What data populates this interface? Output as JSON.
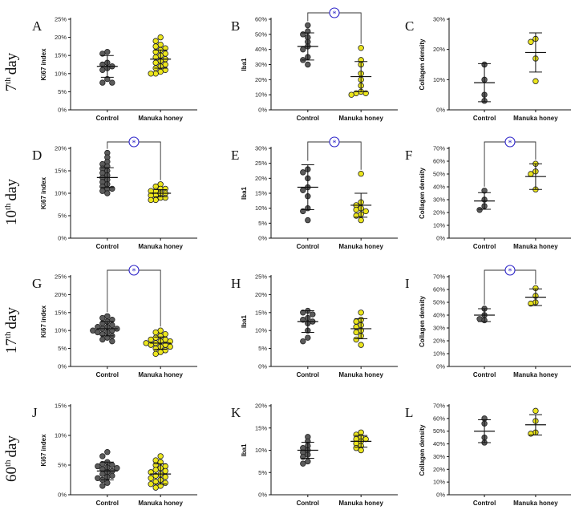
{
  "colors": {
    "control": "#5b5b5b",
    "honey": "#ece61c",
    "significance": "#2b22c8",
    "axis": "#111111"
  },
  "row_labels": [
    {
      "num": "7",
      "sup": "th",
      "word": "day"
    },
    {
      "num": "10",
      "sup": "th",
      "word": "day"
    },
    {
      "num": "17",
      "sup": "th",
      "word": "day"
    },
    {
      "num": "60",
      "sup": "th",
      "word": "day"
    }
  ],
  "significance_marker": "*",
  "chart_data": [
    {
      "type": "scatter",
      "panel": "A",
      "ylabel": "Ki67 index",
      "ylim": [
        0,
        25
      ],
      "yticks": [
        "0%",
        "5%",
        "10%",
        "15%",
        "20%",
        "25%"
      ],
      "categories": [
        "Control",
        "Manuka honey"
      ],
      "significant": false,
      "series": [
        {
          "name": "Control",
          "mean": 12.0,
          "sd": 3.0,
          "values": [
            16.0,
            15.5,
            13.0,
            12.5,
            12.0,
            11.5,
            11.0,
            8.5,
            7.5,
            7.5
          ]
        },
        {
          "name": "Manuka honey",
          "mean": 14.0,
          "sd": 2.5,
          "values": [
            20.0,
            19.0,
            18.0,
            17.5,
            17.0,
            16.5,
            16.0,
            15.5,
            15.0,
            14.5,
            14.0,
            13.5,
            13.0,
            12.5,
            12.0,
            11.5,
            11.0,
            10.5,
            10.0,
            10.0
          ]
        }
      ]
    },
    {
      "type": "scatter",
      "panel": "B",
      "ylabel": "Iba1",
      "ylim": [
        0,
        60
      ],
      "yticks": [
        "0%",
        "10%",
        "20%",
        "30%",
        "40%",
        "50%",
        "60%"
      ],
      "categories": [
        "Control",
        "Manuka honey"
      ],
      "significant": true,
      "series": [
        {
          "name": "Control",
          "mean": 42,
          "sd": 9,
          "values": [
            56,
            52,
            50,
            48,
            45,
            42,
            40,
            35,
            33,
            30
          ]
        },
        {
          "name": "Manuka honey",
          "mean": 22,
          "sd": 10,
          "values": [
            41,
            33,
            30,
            24,
            20,
            16,
            12,
            11,
            11,
            10
          ]
        }
      ]
    },
    {
      "type": "scatter",
      "panel": "C",
      "ylabel": "Collagen density",
      "ylim": [
        0,
        30
      ],
      "yticks": [
        "0%",
        "10%",
        "20%",
        "30%"
      ],
      "categories": [
        "Control",
        "Manuka honey"
      ],
      "significant": false,
      "series": [
        {
          "name": "Control",
          "mean": 9.0,
          "sd": 6.3,
          "values": [
            15.0,
            10.0,
            5.0,
            3.0
          ]
        },
        {
          "name": "Manuka honey",
          "mean": 19.0,
          "sd": 6.5,
          "values": [
            23.5,
            22.5,
            17.0,
            9.5
          ]
        }
      ]
    },
    {
      "type": "scatter",
      "panel": "D",
      "ylabel": "Ki67 index",
      "ylim": [
        0,
        20
      ],
      "yticks": [
        "0%",
        "5%",
        "10%",
        "15%",
        "20%"
      ],
      "categories": [
        "Control",
        "Manuka honey"
      ],
      "significant": true,
      "series": [
        {
          "name": "Control",
          "mean": 13.5,
          "sd": 2.2,
          "values": [
            19.0,
            18.0,
            17.0,
            16.5,
            16.0,
            15.5,
            15.0,
            14.5,
            14.0,
            13.5,
            13.0,
            12.5,
            12.0,
            11.5,
            11.0,
            11.0,
            10.5,
            10.0
          ]
        },
        {
          "name": "Manuka honey",
          "mean": 10.0,
          "sd": 0.8,
          "values": [
            12.0,
            11.5,
            11.0,
            11.0,
            10.5,
            10.5,
            10.0,
            10.0,
            9.5,
            9.5,
            9.0,
            9.0,
            8.5,
            8.5
          ]
        }
      ]
    },
    {
      "type": "scatter",
      "panel": "E",
      "ylabel": "Iba1",
      "ylim": [
        0,
        30
      ],
      "yticks": [
        "0%",
        "5%",
        "10%",
        "15%",
        "20%",
        "25%",
        "30%"
      ],
      "categories": [
        "Control",
        "Manuka honey"
      ],
      "significant": true,
      "series": [
        {
          "name": "Control",
          "mean": 17,
          "sd": 7.5,
          "values": [
            23,
            22,
            20,
            17,
            16,
            14,
            10,
            9,
            6
          ]
        },
        {
          "name": "Manuka honey",
          "mean": 11,
          "sd": 4,
          "values": [
            21.5,
            12,
            11,
            10,
            9.5,
            9,
            8,
            7.5,
            6
          ]
        }
      ]
    },
    {
      "type": "scatter",
      "panel": "F",
      "ylabel": "Collagen density",
      "ylim": [
        0,
        70
      ],
      "yticks": [
        "0%",
        "10%",
        "20%",
        "30%",
        "40%",
        "50%",
        "60%",
        "70%"
      ],
      "categories": [
        "Control",
        "Manuka honey"
      ],
      "significant": true,
      "series": [
        {
          "name": "Control",
          "mean": 29,
          "sd": 6.5,
          "values": [
            37,
            30,
            25,
            22
          ]
        },
        {
          "name": "Manuka honey",
          "mean": 48,
          "sd": 10,
          "values": [
            58,
            52,
            50,
            38
          ]
        }
      ]
    },
    {
      "type": "scatter",
      "panel": "G",
      "ylabel": "Ki67 index",
      "ylim": [
        0,
        25
      ],
      "yticks": [
        "0%",
        "5%",
        "10%",
        "15%",
        "20%",
        "25%"
      ],
      "categories": [
        "Control",
        "Manuka honey"
      ],
      "significant": true,
      "series": [
        {
          "name": "Control",
          "mean": 10.5,
          "sd": 2.0,
          "values": [
            14.0,
            13.5,
            13.0,
            12.5,
            12.0,
            11.5,
            11.0,
            11.0,
            10.5,
            10.5,
            10.0,
            10.0,
            9.5,
            9.5,
            9.0,
            8.5,
            8.0,
            7.5,
            7.0
          ]
        },
        {
          "name": "Manuka honey",
          "mean": 6.5,
          "sd": 1.7,
          "values": [
            10.0,
            9.5,
            9.0,
            8.5,
            8.0,
            7.5,
            7.5,
            7.0,
            7.0,
            6.5,
            6.5,
            6.0,
            6.0,
            5.5,
            5.5,
            5.0,
            4.5,
            4.0,
            3.5
          ]
        }
      ]
    },
    {
      "type": "scatter",
      "panel": "H",
      "ylabel": "Iba1",
      "ylim": [
        0,
        25
      ],
      "yticks": [
        "0%",
        "5%",
        "10%",
        "15%",
        "20%",
        "25%"
      ],
      "categories": [
        "Control",
        "Manuka honey"
      ],
      "significant": false,
      "series": [
        {
          "name": "Control",
          "mean": 12.5,
          "sd": 3.0,
          "values": [
            15.5,
            15.0,
            14.5,
            13.5,
            13.0,
            12.5,
            12.0,
            10.0,
            8.0,
            7.0
          ]
        },
        {
          "name": "Manuka honey",
          "mean": 10.5,
          "sd": 2.8,
          "values": [
            15.0,
            13.0,
            12.5,
            11.5,
            11.0,
            10.0,
            9.5,
            8.5,
            7.5,
            6.0
          ]
        }
      ]
    },
    {
      "type": "scatter",
      "panel": "I",
      "ylabel": "Collagen density",
      "ylim": [
        0,
        70
      ],
      "yticks": [
        "0%",
        "10%",
        "20%",
        "30%",
        "40%",
        "50%",
        "60%",
        "70%"
      ],
      "categories": [
        "Control",
        "Manuka honey"
      ],
      "significant": true,
      "series": [
        {
          "name": "Control",
          "mean": 40,
          "sd": 5,
          "values": [
            45,
            40,
            37,
            36
          ]
        },
        {
          "name": "Manuka honey",
          "mean": 54,
          "sd": 6.5,
          "values": [
            61,
            55,
            50,
            49
          ]
        }
      ]
    },
    {
      "type": "scatter",
      "panel": "J",
      "ylabel": "Ki67 index",
      "ylim": [
        0,
        15
      ],
      "yticks": [
        "0%",
        "5%",
        "10%",
        "15%"
      ],
      "categories": [
        "Control",
        "Manuka honey"
      ],
      "significant": false,
      "series": [
        {
          "name": "Control",
          "mean": 4.0,
          "sd": 1.5,
          "values": [
            7.2,
            6.5,
            5.5,
            5.2,
            5.0,
            4.8,
            4.6,
            4.5,
            4.3,
            4.0,
            3.8,
            3.5,
            3.2,
            3.0,
            2.8,
            2.5,
            2.0,
            1.5
          ]
        },
        {
          "name": "Manuka honey",
          "mean": 3.5,
          "sd": 1.7,
          "values": [
            6.5,
            5.8,
            5.5,
            5.0,
            4.8,
            4.5,
            4.2,
            4.0,
            3.8,
            3.5,
            3.2,
            3.0,
            2.8,
            2.5,
            2.2,
            2.0,
            1.8,
            1.5,
            1.2
          ]
        }
      ]
    },
    {
      "type": "scatter",
      "panel": "K",
      "ylabel": "Iba1",
      "ylim": [
        0,
        20
      ],
      "yticks": [
        "0%",
        "5%",
        "10%",
        "15%",
        "20%"
      ],
      "categories": [
        "Control",
        "Manuka honey"
      ],
      "significant": false,
      "series": [
        {
          "name": "Control",
          "mean": 10,
          "sd": 1.8,
          "values": [
            13.0,
            12.0,
            11.0,
            10.5,
            10.0,
            9.5,
            9.0,
            8.5,
            7.5,
            7.0
          ]
        },
        {
          "name": "Manuka honey",
          "mean": 12,
          "sd": 1.3,
          "values": [
            14.0,
            13.5,
            13.0,
            12.5,
            12.5,
            12.0,
            11.5,
            11.0,
            10.5,
            10.0
          ]
        }
      ]
    },
    {
      "type": "scatter",
      "panel": "L",
      "ylabel": "Collagen density",
      "ylim": [
        0,
        70
      ],
      "yticks": [
        "0%",
        "10%",
        "20%",
        "30%",
        "40%",
        "50%",
        "60%",
        "70%"
      ],
      "categories": [
        "Control",
        "Manuka honey"
      ],
      "significant": false,
      "series": [
        {
          "name": "Control",
          "mean": 50,
          "sd": 9,
          "values": [
            60,
            56,
            45,
            41
          ]
        },
        {
          "name": "Manuka honey",
          "mean": 55,
          "sd": 8,
          "values": [
            66,
            58,
            49,
            48
          ]
        }
      ]
    }
  ]
}
